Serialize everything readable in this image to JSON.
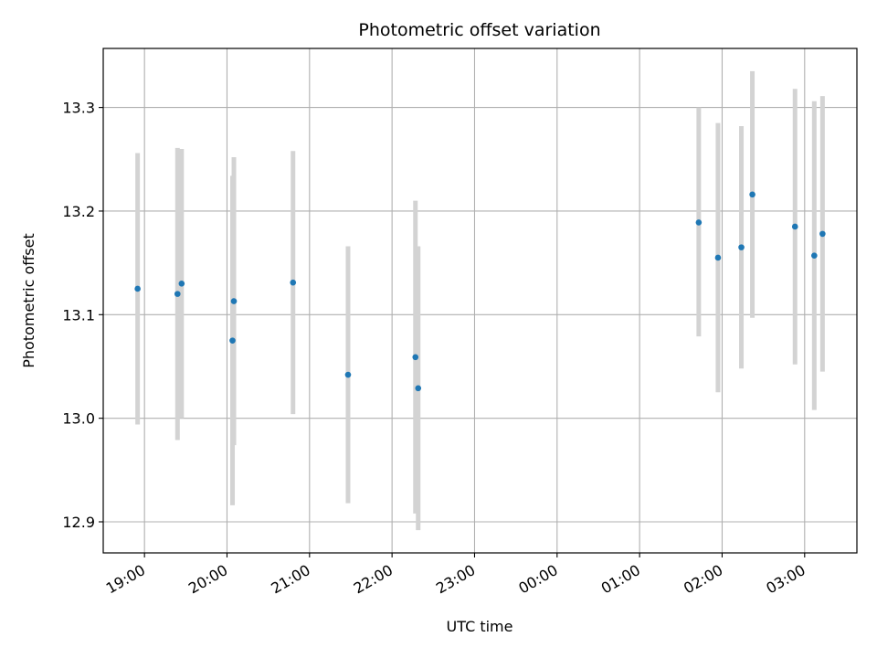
{
  "chart_data": {
    "type": "scatter",
    "title": "Photometric offset variation",
    "xlabel": "UTC time",
    "ylabel": "Photometric offset",
    "x_ticks": [
      "19:00",
      "20:00",
      "21:00",
      "22:00",
      "23:00",
      "00:00",
      "01:00",
      "02:00",
      "03:00"
    ],
    "y_ticks": [
      "12.9",
      "13.0",
      "13.1",
      "13.2",
      "13.3"
    ],
    "xlim": [
      "18:30",
      "03:38"
    ],
    "ylim": [
      12.87,
      13.357
    ],
    "grid": true,
    "colors": {
      "point": "#1f77b4",
      "errorbar": "#d3d3d3",
      "grid": "#b0b0b0"
    },
    "points": [
      {
        "time": "18:55",
        "value": 13.125,
        "low": 12.994,
        "high": 13.256
      },
      {
        "time": "19:24",
        "value": 13.12,
        "low": 12.979,
        "high": 13.261
      },
      {
        "time": "19:27",
        "value": 13.13,
        "low": 13.0,
        "high": 13.26
      },
      {
        "time": "20:04",
        "value": 13.075,
        "low": 12.916,
        "high": 13.234
      },
      {
        "time": "20:05",
        "value": 13.113,
        "low": 12.974,
        "high": 13.252
      },
      {
        "time": "20:48",
        "value": 13.131,
        "low": 13.004,
        "high": 13.258
      },
      {
        "time": "21:28",
        "value": 13.042,
        "low": 12.918,
        "high": 13.166
      },
      {
        "time": "22:17",
        "value": 13.059,
        "low": 12.908,
        "high": 13.21
      },
      {
        "time": "22:19",
        "value": 13.029,
        "low": 12.892,
        "high": 13.166
      },
      {
        "time": "01:43",
        "value": 13.189,
        "low": 13.079,
        "high": 13.3
      },
      {
        "time": "01:57",
        "value": 13.155,
        "low": 13.025,
        "high": 13.285
      },
      {
        "time": "02:14",
        "value": 13.165,
        "low": 13.048,
        "high": 13.282
      },
      {
        "time": "02:22",
        "value": 13.216,
        "low": 13.097,
        "high": 13.335
      },
      {
        "time": "02:53",
        "value": 13.185,
        "low": 13.052,
        "high": 13.318
      },
      {
        "time": "03:07",
        "value": 13.157,
        "low": 13.008,
        "high": 13.306
      },
      {
        "time": "03:13",
        "value": 13.178,
        "low": 13.045,
        "high": 13.311
      }
    ]
  }
}
